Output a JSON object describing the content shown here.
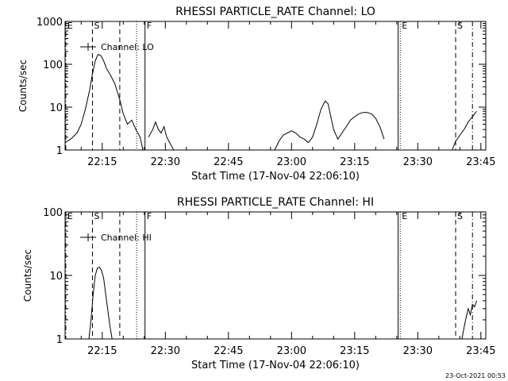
{
  "footer": {
    "timestamp": "23-Oct-2021 00:53"
  },
  "chart_data": [
    {
      "type": "line",
      "title": "RHESSI PARTICLE_RATE Channel: LO",
      "xlabel": "Start Time (17-Nov-04 22:06:10)",
      "ylabel": "Counts/sec",
      "y_scale": "log",
      "ylim": [
        1,
        1000
      ],
      "y_ticks": [
        {
          "value": 1,
          "label": "1"
        },
        {
          "value": 10,
          "label": "10"
        },
        {
          "value": 100,
          "label": "100"
        },
        {
          "value": 1000,
          "label": "1000"
        }
      ],
      "xlim": [
        "22:06:10",
        "23:46:10"
      ],
      "x_ticks": [
        "22:15",
        "22:30",
        "22:45",
        "23:00",
        "23:15",
        "23:30",
        "23:45"
      ],
      "legend": {
        "label": "Channel: LO",
        "placement": "top-left"
      },
      "markers": [
        {
          "label": "E",
          "time": "22:06:20",
          "style": "dash-dot"
        },
        {
          "label": "S",
          "time": "22:12:40",
          "style": "dashed"
        },
        {
          "label": "",
          "time": "22:19:10",
          "style": "dashed"
        },
        {
          "label": "",
          "time": "22:23:10",
          "style": "dotted"
        },
        {
          "label": "F",
          "time": "22:25:10",
          "style": "solid"
        },
        {
          "label": "",
          "time": "23:25:20",
          "style": "solid"
        },
        {
          "label": "E",
          "time": "23:25:50",
          "style": "dotted"
        },
        {
          "label": "S",
          "time": "23:39:00",
          "style": "dashed"
        },
        {
          "label": "",
          "time": "23:43:00",
          "style": "dash-dot"
        }
      ],
      "series": [
        {
          "segments": [
            {
              "x": [
                "22:06:10",
                "22:07:30",
                "22:09:00",
                "22:10:00",
                "22:11:00",
                "22:12:00",
                "22:12:40",
                "22:13:20",
                "22:14:00",
                "22:14:40",
                "22:15:20",
                "22:16:00",
                "22:17:00",
                "22:18:00",
                "22:19:10",
                "22:20:00",
                "22:21:00",
                "22:22:00",
                "22:23:00",
                "22:24:00",
                "22:24:40"
              ],
              "y": [
                1.5,
                1.8,
                2.5,
                4,
                9,
                25,
                60,
                120,
                170,
                160,
                120,
                80,
                55,
                35,
                15,
                7,
                4,
                5,
                3,
                2,
                1
              ]
            },
            {
              "x": [
                "22:26:00",
                "22:27:00",
                "22:27:40",
                "22:28:20",
                "22:29:00",
                "22:29:40",
                "22:30:20",
                "22:31:00",
                "22:32:00"
              ],
              "y": [
                2,
                3,
                4.5,
                3,
                2.5,
                3.5,
                2,
                1.5,
                1
              ]
            },
            {
              "x": [
                "22:56:00",
                "22:57:00",
                "22:58:00",
                "22:59:00",
                "23:00:00",
                "23:01:00",
                "23:02:00",
                "23:03:00",
                "23:04:00",
                "23:05:00",
                "23:06:00",
                "23:07:00",
                "23:08:00",
                "23:08:40",
                "23:09:20",
                "23:10:00",
                "23:11:00",
                "23:12:00",
                "23:13:00",
                "23:14:00",
                "23:15:00",
                "23:16:00",
                "23:17:00",
                "23:18:00",
                "23:19:00",
                "23:20:00",
                "23:21:00",
                "23:22:00"
              ],
              "y": [
                1,
                1.6,
                2.2,
                2.5,
                2.8,
                2.5,
                2,
                1.8,
                1.5,
                2,
                4,
                9,
                14,
                12,
                6,
                3,
                1.8,
                2.5,
                3.5,
                5,
                6,
                7,
                7.5,
                7.5,
                7,
                5.5,
                3.5,
                1.8
              ]
            },
            {
              "x": [
                "23:38:10",
                "23:39:00",
                "23:40:00",
                "23:41:00",
                "23:42:00",
                "23:43:00",
                "23:44:00"
              ],
              "y": [
                1,
                1.6,
                2.2,
                3,
                4.5,
                6,
                8
              ]
            }
          ]
        }
      ]
    },
    {
      "type": "line",
      "title": "RHESSI PARTICLE_RATE Channel: HI",
      "xlabel": "Start Time (17-Nov-04 22:06:10)",
      "ylabel": "Counts/sec",
      "y_scale": "log",
      "ylim": [
        1,
        100
      ],
      "y_ticks": [
        {
          "value": 1,
          "label": "1"
        },
        {
          "value": 10,
          "label": "10"
        },
        {
          "value": 100,
          "label": "100"
        }
      ],
      "xlim": [
        "22:06:10",
        "23:46:10"
      ],
      "x_ticks": [
        "22:15",
        "22:30",
        "22:45",
        "23:00",
        "23:15",
        "23:30",
        "23:45"
      ],
      "legend": {
        "label": "Channel: HI",
        "placement": "top-left"
      },
      "markers": [
        {
          "label": "E",
          "time": "22:06:20",
          "style": "dash-dot"
        },
        {
          "label": "S",
          "time": "22:12:40",
          "style": "dashed"
        },
        {
          "label": "",
          "time": "22:19:10",
          "style": "dashed"
        },
        {
          "label": "",
          "time": "22:23:10",
          "style": "dotted"
        },
        {
          "label": "F",
          "time": "22:25:10",
          "style": "solid"
        },
        {
          "label": "",
          "time": "23:25:20",
          "style": "solid"
        },
        {
          "label": "E",
          "time": "23:25:50",
          "style": "dotted"
        },
        {
          "label": "S",
          "time": "23:39:00",
          "style": "dashed"
        },
        {
          "label": "",
          "time": "23:43:00",
          "style": "dash-dot"
        }
      ],
      "series": [
        {
          "segments": [
            {
              "x": [
                "22:11:50",
                "22:12:20",
                "22:12:50",
                "22:13:20",
                "22:13:50",
                "22:14:20",
                "22:14:50",
                "22:15:20",
                "22:15:50",
                "22:16:20",
                "22:16:50",
                "22:17:20"
              ],
              "y": [
                1,
                2,
                5,
                10,
                13,
                13.5,
                12,
                9,
                5,
                2.8,
                1.6,
                1
              ]
            },
            {
              "x": [
                "23:40:30",
                "23:41:00",
                "23:41:30",
                "23:42:00",
                "23:42:30",
                "23:43:00",
                "23:43:30",
                "23:44:00"
              ],
              "y": [
                1,
                1.5,
                2.2,
                3,
                2.4,
                3.5,
                3.2,
                4
              ]
            }
          ]
        }
      ]
    }
  ]
}
